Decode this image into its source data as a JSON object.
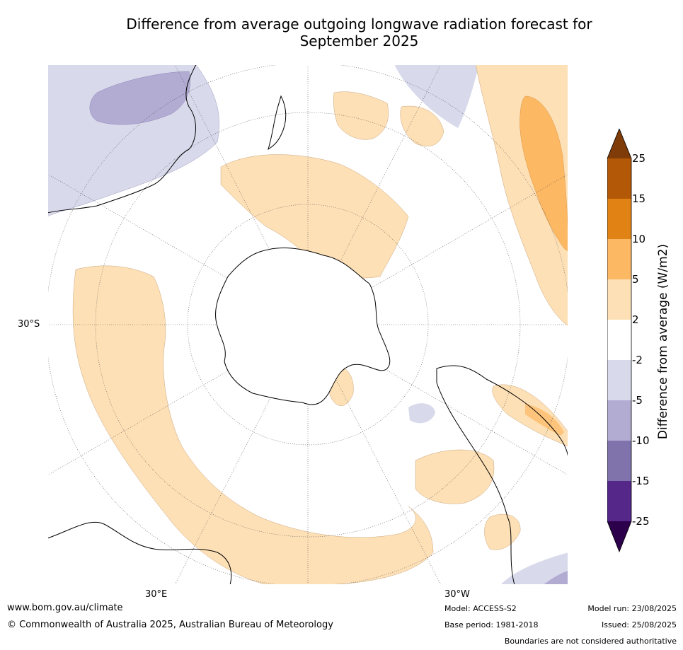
{
  "title_line1": "Difference from average outgoing longwave radiation forecast for",
  "title_line2": "September 2025",
  "map": {
    "projection": "south-polar stereographic",
    "lat_label": "30°S",
    "lon_labels": [
      "30°E",
      "30°W"
    ]
  },
  "colorbar": {
    "label": "Difference from average (W/m2)",
    "ticks": [
      "25",
      "15",
      "10",
      "5",
      "2",
      "-2",
      "-5",
      "-10",
      "-15",
      "-25"
    ],
    "colors": {
      "above_25": "#7f3b08",
      "15_25": "#b35806",
      "10_15": "#e08214",
      "5_10": "#fdb863",
      "2_5": "#fee0b6",
      "neutral": "#ffffff",
      "m2_m5": "#d8daeb",
      "m5_m10": "#b2abd2",
      "m10_m15": "#8073ac",
      "m15_m25": "#542788",
      "below_m25": "#2d004b"
    }
  },
  "footer": {
    "url": "www.bom.gov.au/climate",
    "copyright": "© Commonwealth of Australia 2025, Australian Bureau of Meteorology",
    "model": "Model: ACCESS-S2",
    "base_period": "Base period: 1981-2018",
    "model_run": "Model run: 23/08/2025",
    "issued": "Issued: 25/08/2025",
    "disclaimer": "Boundaries are not considered authoritative"
  }
}
